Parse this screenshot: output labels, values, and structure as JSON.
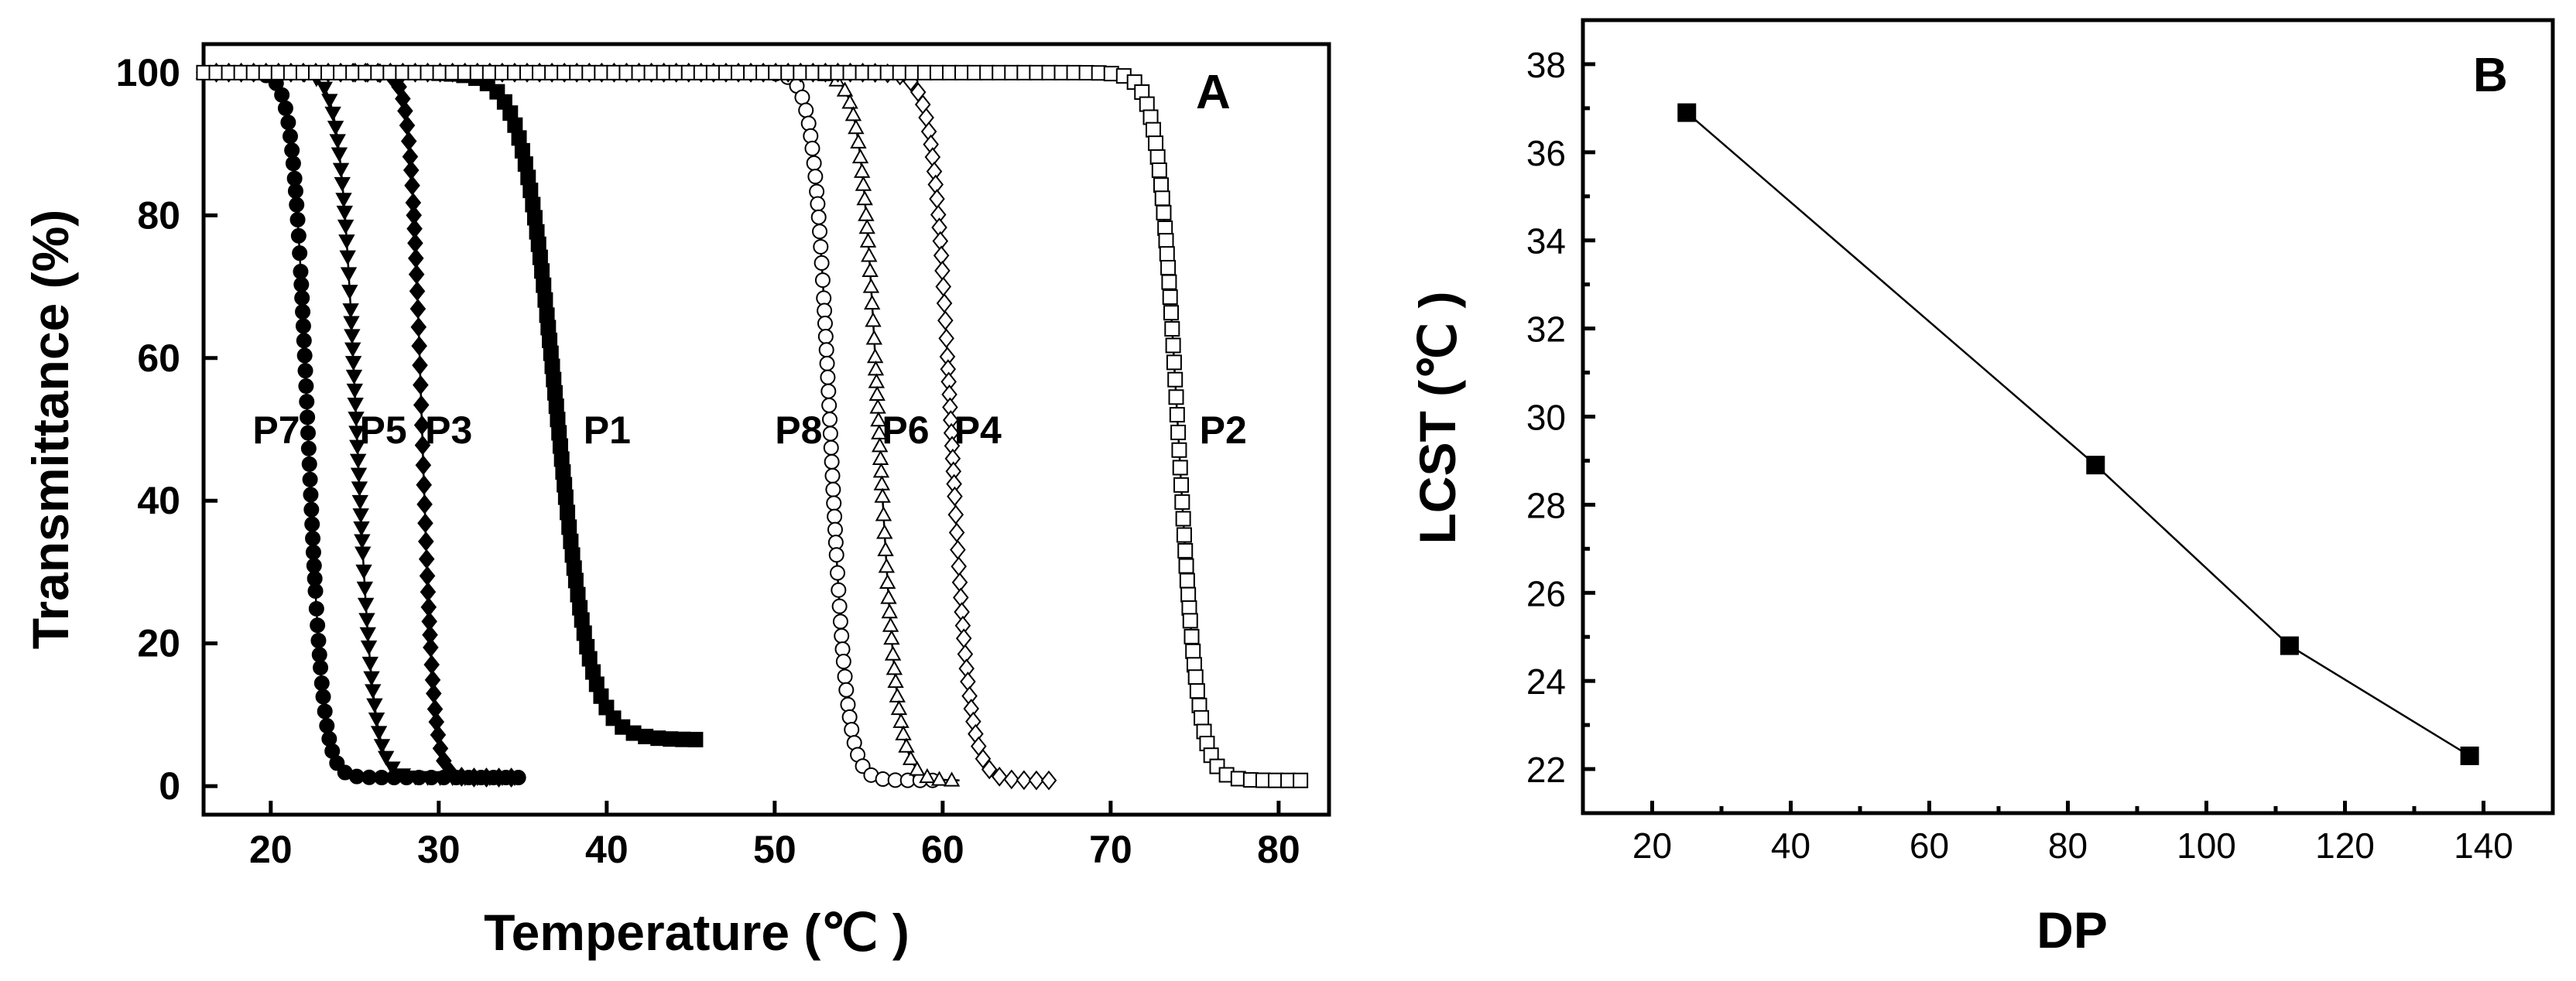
{
  "chart_data": [
    {
      "type": "scatter",
      "panel_label": "A",
      "xlabel": "Temperature (℃ )",
      "ylabel": "Transmittance (%)",
      "xlim": [
        16,
        83
      ],
      "ylim": [
        -4,
        104
      ],
      "xticks": [
        20,
        30,
        40,
        50,
        60,
        70,
        80
      ],
      "yticks": [
        0,
        20,
        40,
        60,
        80,
        100
      ],
      "grid": false,
      "series": [
        {
          "name": "P7",
          "marker": "circle-filled",
          "tm": 22.2,
          "width": 0.45,
          "xmin": 16,
          "xmax": 35,
          "low": 1.2
        },
        {
          "name": "P5",
          "marker": "triangle-down-filled",
          "tm": 25.1,
          "width": 0.5,
          "xmin": 22,
          "xmax": 35,
          "low": 1.2
        },
        {
          "name": "P3",
          "marker": "diamond-filled",
          "tm": 29.0,
          "width": 0.35,
          "xmin": 25,
          "xmax": 35,
          "low": 1.2
        },
        {
          "name": "P1",
          "marker": "square-filled",
          "tm": 37.0,
          "width": 1.0,
          "xmin": 30,
          "xmax": 45.5,
          "low": 6.5
        },
        {
          "name": "P8",
          "marker": "circle-open",
          "tm": 53.3,
          "width": 0.5,
          "xmin": 16,
          "xmax": 60,
          "low": 0.8
        },
        {
          "name": "P6",
          "marker": "triangle-up-open",
          "tm": 56.2,
          "width": 0.55,
          "xmin": 16,
          "xmax": 61,
          "low": 0.8
        },
        {
          "name": "P4",
          "marker": "diamond-open",
          "tm": 60.5,
          "width": 0.55,
          "xmin": 16,
          "xmax": 66.5,
          "low": 0.8
        },
        {
          "name": "P2",
          "marker": "square-open",
          "tm": 74.0,
          "width": 0.6,
          "xmin": 16,
          "xmax": 81.5,
          "low": 0.8
        }
      ]
    },
    {
      "type": "line",
      "panel_label": "B",
      "xlabel": "DP",
      "ylabel": "LCST (℃ )",
      "xlim": [
        10,
        150
      ],
      "ylim": [
        21,
        39
      ],
      "xticks": [
        20,
        40,
        60,
        80,
        100,
        120,
        140
      ],
      "yticks": [
        22,
        24,
        26,
        28,
        30,
        32,
        34,
        36,
        38
      ],
      "grid": false,
      "series": [
        {
          "name": "",
          "marker": "square-filled",
          "x": [
            25,
            84,
            112,
            138
          ],
          "y": [
            36.9,
            28.9,
            24.8,
            22.3
          ]
        }
      ]
    }
  ]
}
